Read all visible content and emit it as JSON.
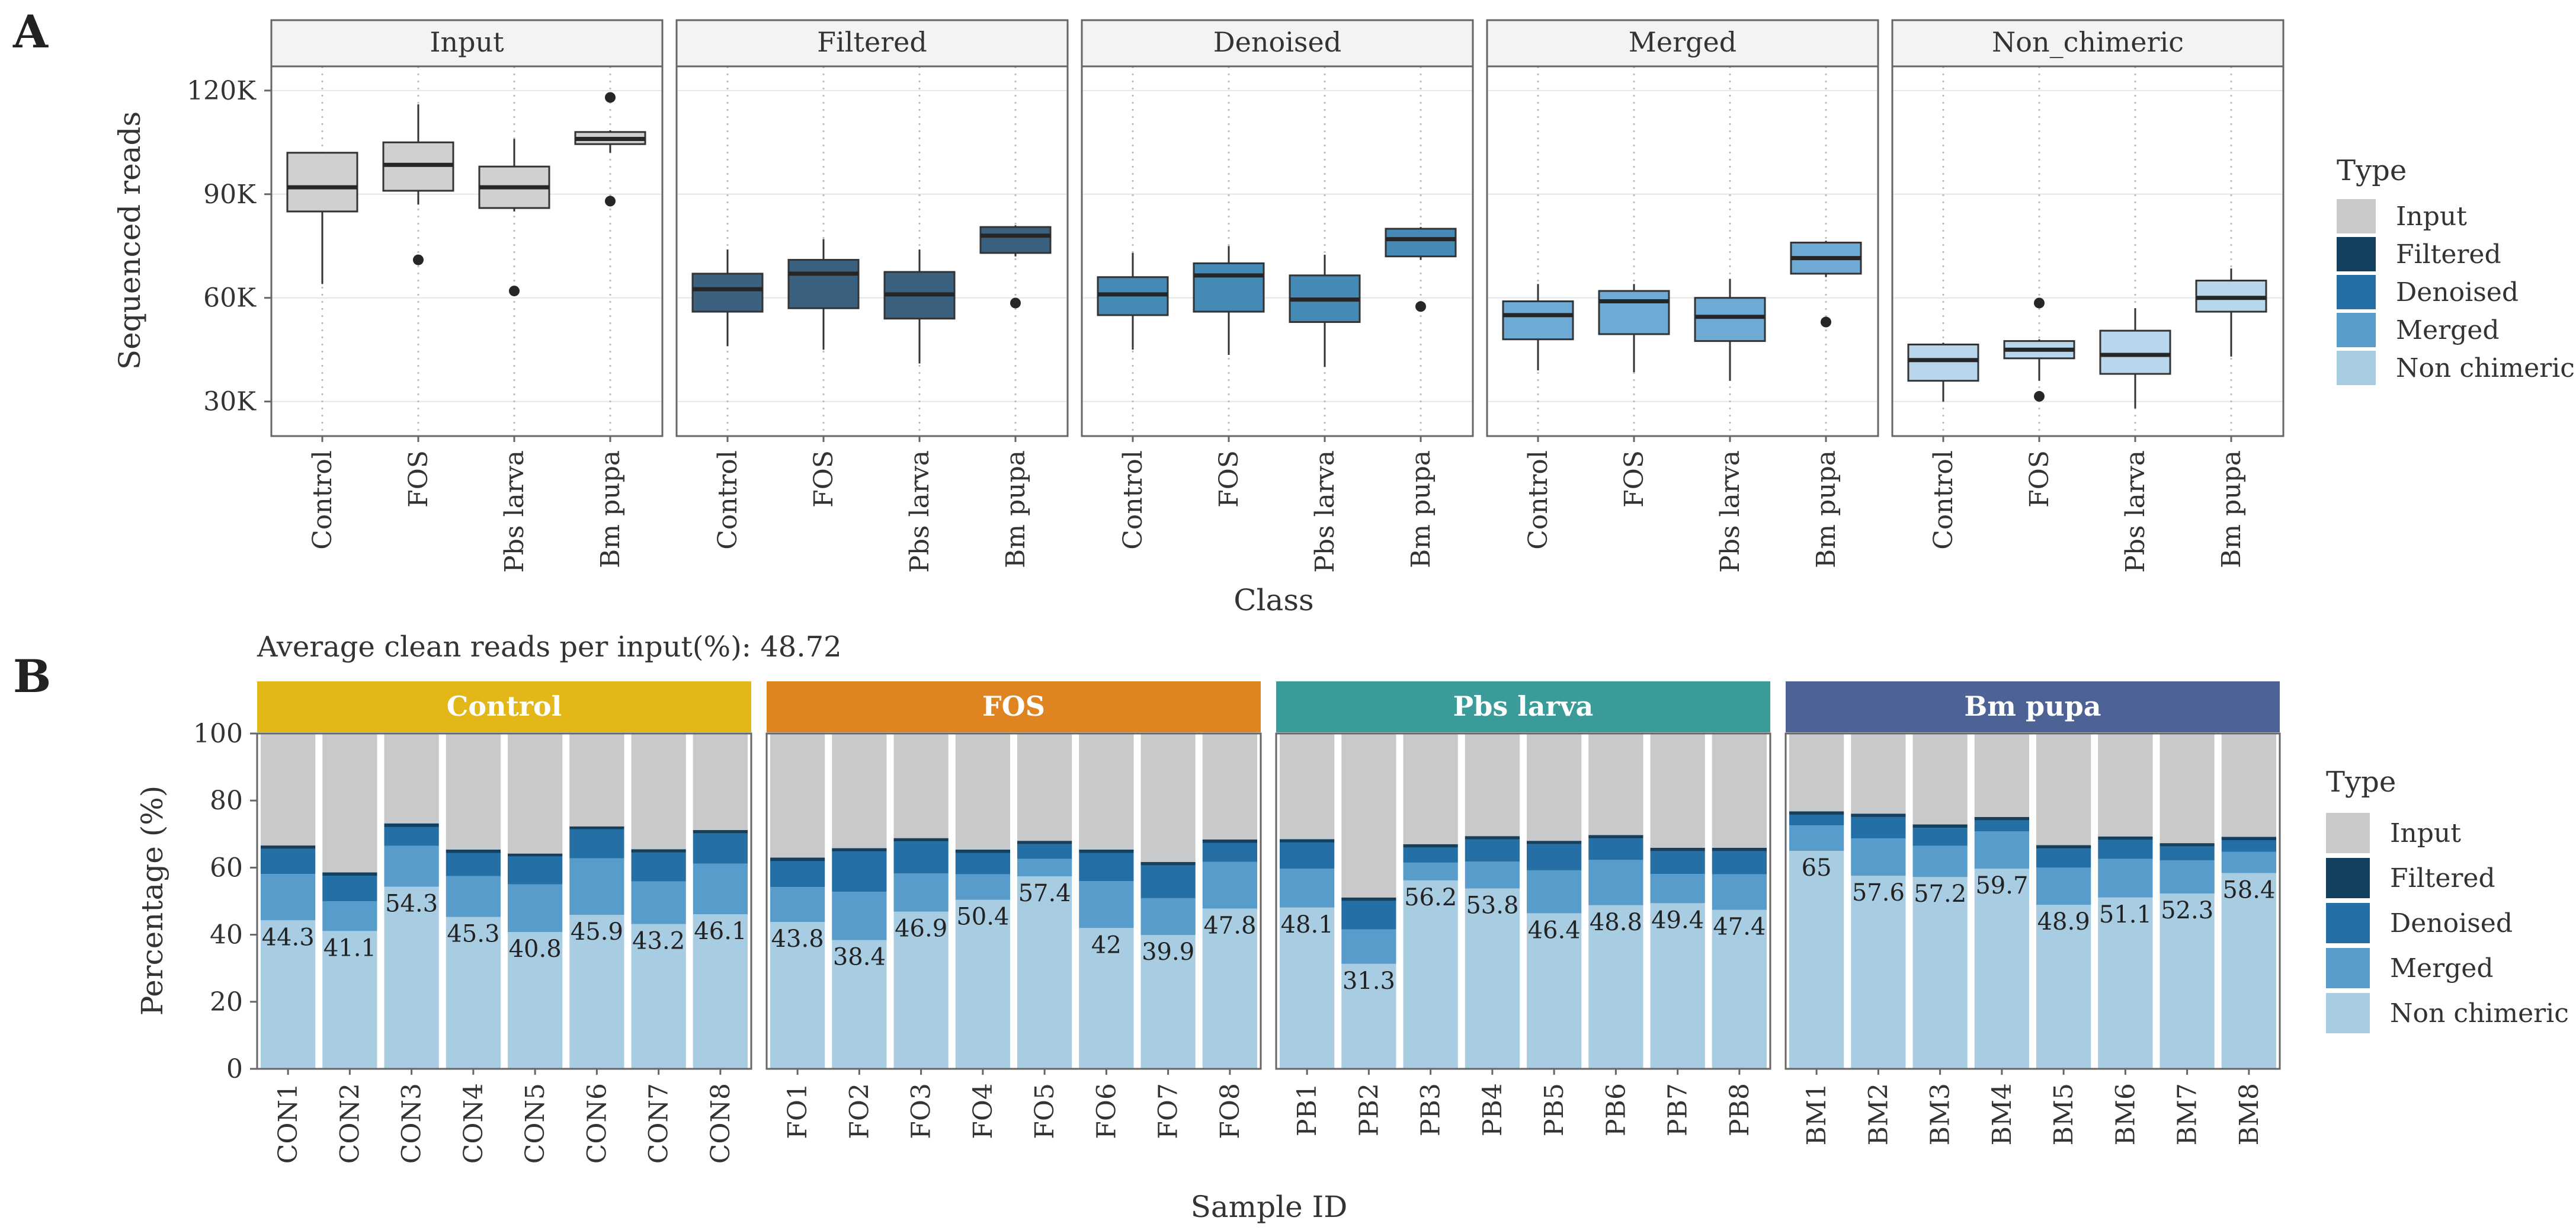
{
  "figure": {
    "panel_a_letter": "A",
    "panel_b_letter": "B"
  },
  "colors": {
    "Input": "#c8c9cb",
    "Filtered": "#14405f",
    "Denoised": "#2470a6",
    "Merged": "#589ccb",
    "Non chimeric": "#a8cce2",
    "Input_box_a": "#cfd0d2",
    "Filtered_box_a": "#3b6180",
    "Denoised_box_a": "#4589b5",
    "Merged_box_a": "#6eaad4",
    "Non_chimeric_box_a": "#b9d7ec",
    "Control": "#e3b718",
    "FOS": "#e08422",
    "Pbs larva": "#3a9b98",
    "Bm pupa": "#4d6295"
  },
  "chart_data": [
    {
      "type": "box",
      "title": "",
      "facets": [
        "Input",
        "Filtered",
        "Denoised",
        "Merged",
        "Non_chimeric"
      ],
      "categories": [
        "Control",
        "FOS",
        "Pbs larva",
        "Bm pupa"
      ],
      "xlabel": "Class",
      "ylabel": "Sequenced reads",
      "ylim": [
        20000,
        127000
      ],
      "yticks": [
        30000,
        60000,
        90000,
        120000
      ],
      "ytick_labels": [
        "30K",
        "60K",
        "90K",
        "120K"
      ],
      "series": [
        {
          "name": "Input",
          "boxes": [
            {
              "min": 64000,
              "q1": 85000,
              "median": 92000,
              "q3": 102000,
              "max": 102000,
              "outliers": []
            },
            {
              "min": 87000,
              "q1": 91000,
              "median": 98500,
              "q3": 105000,
              "max": 116000,
              "outliers": [
                71000
              ]
            },
            {
              "min": 85000,
              "q1": 86000,
              "median": 92000,
              "q3": 98000,
              "max": 106000,
              "outliers": [
                62000
              ]
            },
            {
              "min": 102000,
              "q1": 104500,
              "median": 106000,
              "q3": 108000,
              "max": 108500,
              "outliers": [
                118000,
                88000
              ]
            }
          ]
        },
        {
          "name": "Filtered",
          "boxes": [
            {
              "min": 46000,
              "q1": 56000,
              "median": 62500,
              "q3": 67000,
              "max": 74000,
              "outliers": []
            },
            {
              "min": 45000,
              "q1": 57000,
              "median": 67000,
              "q3": 71000,
              "max": 77000,
              "outliers": []
            },
            {
              "min": 41000,
              "q1": 54000,
              "median": 61000,
              "q3": 67500,
              "max": 74000,
              "outliers": []
            },
            {
              "min": 72000,
              "q1": 73000,
              "median": 78000,
              "q3": 80500,
              "max": 81000,
              "outliers": [
                58500
              ]
            }
          ]
        },
        {
          "name": "Denoised",
          "boxes": [
            {
              "min": 45000,
              "q1": 55000,
              "median": 61000,
              "q3": 66000,
              "max": 73000,
              "outliers": []
            },
            {
              "min": 43500,
              "q1": 56000,
              "median": 66500,
              "q3": 70000,
              "max": 75000,
              "outliers": []
            },
            {
              "min": 40000,
              "q1": 53000,
              "median": 59500,
              "q3": 66500,
              "max": 72500,
              "outliers": []
            },
            {
              "min": 71000,
              "q1": 72000,
              "median": 77000,
              "q3": 80000,
              "max": 80500,
              "outliers": [
                57500
              ]
            }
          ]
        },
        {
          "name": "Merged",
          "boxes": [
            {
              "min": 39000,
              "q1": 48000,
              "median": 55000,
              "q3": 59000,
              "max": 64000,
              "outliers": []
            },
            {
              "min": 38500,
              "q1": 49500,
              "median": 59000,
              "q3": 62000,
              "max": 64000,
              "outliers": []
            },
            {
              "min": 36000,
              "q1": 47500,
              "median": 54500,
              "q3": 60000,
              "max": 65500,
              "outliers": []
            },
            {
              "min": 66000,
              "q1": 67000,
              "median": 71500,
              "q3": 76000,
              "max": 76500,
              "outliers": [
                53000
              ]
            }
          ]
        },
        {
          "name": "Non_chimeric",
          "boxes": [
            {
              "min": 30000,
              "q1": 36000,
              "median": 42000,
              "q3": 46500,
              "max": 47000,
              "outliers": []
            },
            {
              "min": 36000,
              "q1": 42500,
              "median": 45000,
              "q3": 47500,
              "max": 48000,
              "outliers": [
                58500,
                31500
              ]
            },
            {
              "min": 28000,
              "q1": 38000,
              "median": 43500,
              "q3": 50500,
              "max": 57000,
              "outliers": []
            },
            {
              "min": 43000,
              "q1": 56000,
              "median": 60000,
              "q3": 65000,
              "max": 68500,
              "outliers": []
            }
          ]
        }
      ],
      "legend": {
        "title": "Type",
        "entries": [
          "Input",
          "Filtered",
          "Denoised",
          "Merged",
          "Non chimeric"
        ],
        "placement": "right"
      }
    },
    {
      "type": "bar",
      "subtitle": "Average clean reads per input(%): 48.72",
      "xlabel": "Sample ID",
      "ylabel": "Percentage (%)",
      "ylim": [
        0,
        100
      ],
      "yticks": [
        0,
        20,
        40,
        60,
        80,
        100
      ],
      "stack_order": [
        "Non chimeric",
        "Merged",
        "Denoised",
        "Filtered",
        "Input"
      ],
      "groups": [
        {
          "name": "Control",
          "samples": [
            {
              "id": "CON1",
              "nonchim": 44.3,
              "merged": 58.1,
              "denoised": 65.6,
              "filtered": 66.6,
              "label": "44.3"
            },
            {
              "id": "CON2",
              "nonchim": 41.1,
              "merged": 50.0,
              "denoised": 57.6,
              "filtered": 58.6,
              "label": "41.1"
            },
            {
              "id": "CON3",
              "nonchim": 54.3,
              "merged": 66.5,
              "denoised": 72.1,
              "filtered": 73.2,
              "label": "54.3"
            },
            {
              "id": "CON4",
              "nonchim": 45.3,
              "merged": 57.5,
              "denoised": 64.4,
              "filtered": 65.4,
              "label": "45.3"
            },
            {
              "id": "CON5",
              "nonchim": 40.8,
              "merged": 55.0,
              "denoised": 63.3,
              "filtered": 64.2,
              "label": "40.8"
            },
            {
              "id": "CON6",
              "nonchim": 45.9,
              "merged": 62.8,
              "denoised": 71.4,
              "filtered": 72.3,
              "label": "45.9"
            },
            {
              "id": "CON7",
              "nonchim": 43.2,
              "merged": 55.9,
              "denoised": 64.5,
              "filtered": 65.5,
              "label": "43.2"
            },
            {
              "id": "CON8",
              "nonchim": 46.1,
              "merged": 61.2,
              "denoised": 70.2,
              "filtered": 71.2,
              "label": "46.1"
            }
          ]
        },
        {
          "name": "FOS",
          "samples": [
            {
              "id": "FO1",
              "nonchim": 43.8,
              "merged": 54.2,
              "denoised": 61.9,
              "filtered": 63.0,
              "label": "43.8"
            },
            {
              "id": "FO2",
              "nonchim": 38.4,
              "merged": 52.8,
              "denoised": 64.8,
              "filtered": 65.8,
              "label": "38.4"
            },
            {
              "id": "FO3",
              "nonchim": 46.9,
              "merged": 58.3,
              "denoised": 67.8,
              "filtered": 68.8,
              "label": "46.9"
            },
            {
              "id": "FO4",
              "nonchim": 50.4,
              "merged": 58.0,
              "denoised": 64.4,
              "filtered": 65.4,
              "label": "50.4"
            },
            {
              "id": "FO5",
              "nonchim": 57.4,
              "merged": 62.6,
              "denoised": 67.0,
              "filtered": 68.0,
              "label": "57.4"
            },
            {
              "id": "FO6",
              "nonchim": 42.0,
              "merged": 56.0,
              "denoised": 64.4,
              "filtered": 65.4,
              "label": "42"
            },
            {
              "id": "FO7",
              "nonchim": 39.9,
              "merged": 50.9,
              "denoised": 60.7,
              "filtered": 61.7,
              "label": "39.9"
            },
            {
              "id": "FO8",
              "nonchim": 47.8,
              "merged": 61.7,
              "denoised": 67.4,
              "filtered": 68.4,
              "label": "47.8"
            }
          ]
        },
        {
          "name": "Pbs larva",
          "samples": [
            {
              "id": "PB1",
              "nonchim": 48.1,
              "merged": 59.7,
              "denoised": 67.5,
              "filtered": 68.5,
              "label": "48.1"
            },
            {
              "id": "PB2",
              "nonchim": 31.3,
              "merged": 41.6,
              "denoised": 50.1,
              "filtered": 51.1,
              "label": "31.3"
            },
            {
              "id": "PB3",
              "nonchim": 56.2,
              "merged": 61.5,
              "denoised": 66.0,
              "filtered": 67.0,
              "label": "56.2"
            },
            {
              "id": "PB4",
              "nonchim": 53.8,
              "merged": 61.8,
              "denoised": 68.4,
              "filtered": 69.4,
              "label": "53.8"
            },
            {
              "id": "PB5",
              "nonchim": 46.4,
              "merged": 59.2,
              "denoised": 67.0,
              "filtered": 68.0,
              "label": "46.4"
            },
            {
              "id": "PB6",
              "nonchim": 48.8,
              "merged": 62.3,
              "denoised": 68.7,
              "filtered": 69.7,
              "label": "48.8"
            },
            {
              "id": "PB7",
              "nonchim": 49.4,
              "merged": 58.1,
              "denoised": 64.9,
              "filtered": 65.9,
              "label": "49.4"
            },
            {
              "id": "PB8",
              "nonchim": 47.4,
              "merged": 58.0,
              "denoised": 64.9,
              "filtered": 65.9,
              "label": "47.4"
            }
          ]
        },
        {
          "name": "Bm pupa",
          "samples": [
            {
              "id": "BM1",
              "nonchim": 65.0,
              "merged": 72.6,
              "denoised": 75.8,
              "filtered": 76.8,
              "label": "65"
            },
            {
              "id": "BM2",
              "nonchim": 57.6,
              "merged": 68.7,
              "denoised": 75.1,
              "filtered": 76.1,
              "label": "57.6"
            },
            {
              "id": "BM3",
              "nonchim": 57.2,
              "merged": 66.5,
              "denoised": 71.9,
              "filtered": 72.9,
              "label": "57.2"
            },
            {
              "id": "BM4",
              "nonchim": 59.7,
              "merged": 70.8,
              "denoised": 74.1,
              "filtered": 75.1,
              "label": "59.7"
            },
            {
              "id": "BM5",
              "nonchim": 48.9,
              "merged": 60.0,
              "denoised": 65.7,
              "filtered": 66.7,
              "label": "48.9"
            },
            {
              "id": "BM6",
              "nonchim": 51.1,
              "merged": 62.6,
              "denoised": 68.3,
              "filtered": 69.3,
              "label": "51.1"
            },
            {
              "id": "BM7",
              "nonchim": 52.3,
              "merged": 62.2,
              "denoised": 66.3,
              "filtered": 67.3,
              "label": "52.3"
            },
            {
              "id": "BM8",
              "nonchim": 58.4,
              "merged": 64.7,
              "denoised": 68.2,
              "filtered": 69.2,
              "label": "58.4"
            }
          ]
        }
      ],
      "legend": {
        "title": "Type",
        "entries": [
          "Input",
          "Filtered",
          "Denoised",
          "Merged",
          "Non chimeric"
        ],
        "placement": "right"
      }
    }
  ]
}
